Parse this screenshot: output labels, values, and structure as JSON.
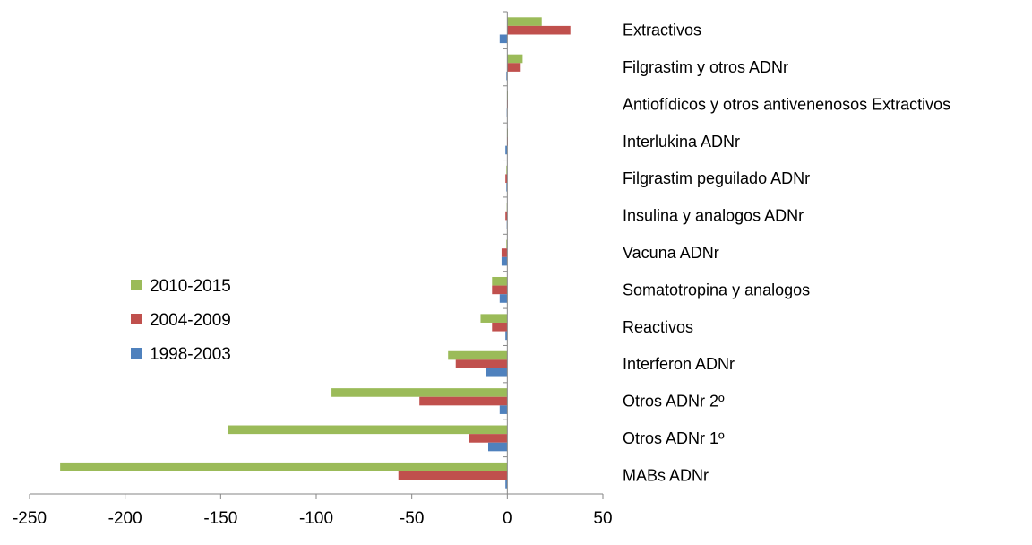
{
  "chart_data": {
    "type": "bar",
    "orientation": "horizontal",
    "categories": [
      "Extractivos",
      "Filgrastim y otros ADNr",
      "Antiofídicos y otros antivenenosos Extractivos",
      "Interlukina ADNr",
      "Filgrastim peguilado ADNr",
      "Insulina y analogos ADNr",
      "Vacuna ADNr",
      "Somatotropina y analogos",
      "Reactivos",
      "Interferon ADNr",
      "Otros ADNr 2º",
      "Otros ADNr 1º",
      "MABs ADNr"
    ],
    "series": [
      {
        "name": "2010-2015",
        "color": "#9BBB59",
        "values": [
          18,
          8,
          0.3,
          0.3,
          -0.5,
          -0.3,
          -0.5,
          -8,
          -14,
          -31,
          -92,
          -146,
          -234
        ]
      },
      {
        "name": "2004-2009",
        "color": "#C0504D",
        "values": [
          33,
          7,
          0.3,
          0.3,
          -1,
          -1,
          -3,
          -8,
          -8,
          -27,
          -46,
          -20,
          -57
        ]
      },
      {
        "name": "1998-2003",
        "color": "#4F81BD",
        "values": [
          -4,
          -0.5,
          -0.3,
          -1,
          -0.5,
          -0.3,
          -3,
          -4,
          -1,
          -11,
          -4,
          -10,
          -1
        ]
      }
    ],
    "xlim": [
      -250,
      50
    ],
    "xticks": [
      -250,
      -200,
      -150,
      -100,
      -50,
      0,
      50
    ],
    "legend_placement": "left",
    "grid": false,
    "title": "",
    "xlabel": "",
    "ylabel": ""
  }
}
